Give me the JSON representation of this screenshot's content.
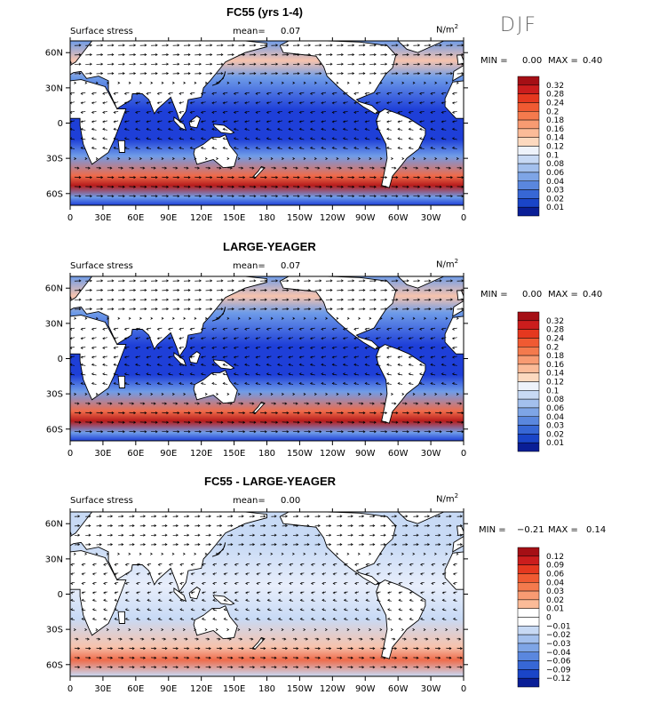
{
  "season": "DJF",
  "units_main": "N/m",
  "units_sup": "2",
  "panels": [
    {
      "title": "FC55 (yrs 1-4)",
      "field_label": "Surface stress",
      "mean_label": "mean=",
      "mean_value": "0.07",
      "min_label": "MIN =",
      "min_value": "0.00",
      "max_label": "MAX =",
      "max_value": "0.40"
    },
    {
      "title": "LARGE-YEAGER",
      "field_label": "Surface stress",
      "mean_label": "mean=",
      "mean_value": "0.07",
      "min_label": "MIN =",
      "min_value": "0.00",
      "max_label": "MAX =",
      "max_value": "0.40"
    },
    {
      "title": "FC55 - LARGE-YEAGER",
      "field_label": "Surface stress",
      "mean_label": "mean=",
      "mean_value": "0.00",
      "min_label": "MIN =",
      "min_value": "−0.21",
      "max_label": "MAX =",
      "max_value": "0.14"
    }
  ],
  "colors": {
    "ocean_low": "#1e3fd8",
    "ocean_mid": "#6f9ce8",
    "ocean_light": "#c8daf5",
    "warm_low": "#f6c3ad",
    "warm_mid": "#ef6b4a",
    "warm_high": "#b71c1c",
    "land": "#ffffff"
  },
  "chart_data": [
    {
      "type": "heatmap",
      "title": "FC55 (yrs 1-4)",
      "field": "Surface stress",
      "units": "N/m2",
      "mean": 0.07,
      "min": 0.0,
      "max": 0.4,
      "x_ticks": [
        "0",
        "30E",
        "60E",
        "90E",
        "120E",
        "150E",
        "180",
        "150W",
        "120W",
        "90W",
        "60W",
        "30W",
        "0"
      ],
      "y_ticks": [
        "60N",
        "30N",
        "0",
        "30S",
        "60S"
      ],
      "xlim": [
        0,
        360
      ],
      "ylim": [
        -70,
        70
      ],
      "colorbar_levels": [
        "0.32",
        "0.28",
        "0.24",
        "0.2",
        "0.18",
        "0.16",
        "0.14",
        "0.12",
        "0.1",
        "0.08",
        "0.06",
        "0.04",
        "0.03",
        "0.02",
        "0.01"
      ],
      "colorbar_colors": [
        "#a50f15",
        "#cb1d1d",
        "#e5381f",
        "#f05a32",
        "#f47a4d",
        "#f89b72",
        "#fbbb98",
        "#fcd9bf",
        "#eef3fb",
        "#c7d9f4",
        "#a3c0ed",
        "#7ea5e6",
        "#5a87de",
        "#3767d5",
        "#1a45c8",
        "#0a1e96"
      ]
    },
    {
      "type": "heatmap",
      "title": "LARGE-YEAGER",
      "field": "Surface stress",
      "units": "N/m2",
      "mean": 0.07,
      "min": 0.0,
      "max": 0.4,
      "x_ticks": [
        "0",
        "30E",
        "60E",
        "90E",
        "120E",
        "150E",
        "180",
        "150W",
        "120W",
        "90W",
        "60W",
        "30W",
        "0"
      ],
      "y_ticks": [
        "60N",
        "30N",
        "0",
        "30S",
        "60S"
      ],
      "xlim": [
        0,
        360
      ],
      "ylim": [
        -70,
        70
      ],
      "colorbar_levels": [
        "0.32",
        "0.28",
        "0.24",
        "0.2",
        "0.18",
        "0.16",
        "0.14",
        "0.12",
        "0.1",
        "0.08",
        "0.06",
        "0.04",
        "0.03",
        "0.02",
        "0.01"
      ],
      "colorbar_colors": [
        "#a50f15",
        "#cb1d1d",
        "#e5381f",
        "#f05a32",
        "#f47a4d",
        "#f89b72",
        "#fbbb98",
        "#fcd9bf",
        "#eef3fb",
        "#c7d9f4",
        "#a3c0ed",
        "#7ea5e6",
        "#5a87de",
        "#3767d5",
        "#1a45c8",
        "#0a1e96"
      ]
    },
    {
      "type": "heatmap",
      "title": "FC55 - LARGE-YEAGER",
      "field": "Surface stress",
      "units": "N/m2",
      "mean": 0.0,
      "min": -0.21,
      "max": 0.14,
      "x_ticks": [
        "0",
        "30E",
        "60E",
        "90E",
        "120E",
        "150E",
        "180",
        "150W",
        "120W",
        "90W",
        "60W",
        "30W",
        "0"
      ],
      "y_ticks": [
        "60N",
        "30N",
        "0",
        "30S",
        "60S"
      ],
      "xlim": [
        0,
        360
      ],
      "ylim": [
        -70,
        70
      ],
      "colorbar_levels": [
        "0.12",
        "0.09",
        "0.06",
        "0.04",
        "0.03",
        "0.02",
        "0.01",
        "0",
        "−0.01",
        "−0.02",
        "−0.03",
        "−0.04",
        "−0.06",
        "−0.09",
        "−0.12"
      ],
      "colorbar_colors": [
        "#a50f15",
        "#cb1d1d",
        "#e5381f",
        "#f05a32",
        "#f47a4d",
        "#f89b72",
        "#fbbb98",
        "#ffffff",
        "#ffffff",
        "#c7d9f4",
        "#a3c0ed",
        "#7ea5e6",
        "#5a87de",
        "#3767d5",
        "#1a45c8",
        "#0a1e96"
      ]
    }
  ]
}
